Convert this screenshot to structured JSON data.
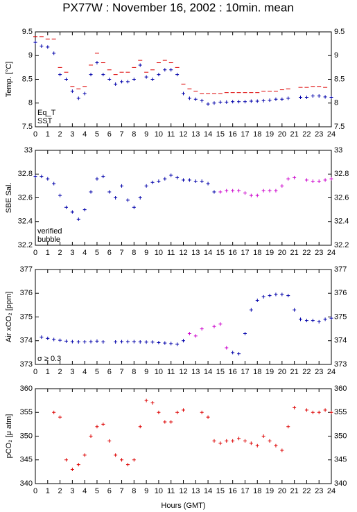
{
  "title": "PX77W : November 16, 2002 : 10min. mean",
  "chart_data": [
    {
      "type": "scatter",
      "ylabel": "Temp. [°C]",
      "x": [
        0,
        0.5,
        1,
        1.5,
        2,
        2.5,
        3,
        3.5,
        4,
        4.5,
        5,
        5.5,
        6,
        6.5,
        7,
        7.5,
        8,
        8.5,
        9,
        9.5,
        10,
        10.5,
        11,
        11.5,
        12,
        12.5,
        13,
        13.5,
        14,
        14.5,
        15,
        15.5,
        16,
        16.5,
        17,
        17.5,
        18,
        18.5,
        19,
        19.5,
        20,
        20.5,
        21,
        21.5,
        22,
        22.5,
        23,
        23.5,
        24
      ],
      "series": [
        {
          "name": "Eq_T",
          "color": "#dd0000",
          "marker": "dash",
          "values": [
            9.4,
            9.4,
            9.35,
            9.35,
            8.75,
            8.65,
            8.35,
            8.3,
            8.35,
            8.8,
            9.05,
            8.85,
            8.7,
            8.6,
            8.65,
            8.65,
            8.75,
            8.9,
            8.65,
            8.7,
            8.85,
            8.9,
            8.85,
            8.75,
            8.4,
            8.3,
            8.25,
            8.2,
            8.2,
            8.2,
            8.2,
            8.22,
            8.22,
            8.22,
            8.22,
            8.22,
            8.22,
            8.25,
            8.25,
            8.25,
            8.28,
            8.3,
            null,
            8.33,
            8.33,
            8.35,
            8.35,
            8.33,
            null
          ]
        },
        {
          "name": "SST",
          "color": "#0000aa",
          "marker": "cross",
          "values": [
            9.28,
            9.2,
            9.18,
            9.05,
            8.6,
            8.5,
            8.25,
            8.1,
            8.2,
            8.6,
            8.85,
            8.6,
            8.5,
            8.4,
            8.45,
            8.45,
            8.5,
            8.8,
            8.55,
            8.5,
            8.6,
            8.7,
            8.7,
            8.6,
            8.2,
            8.1,
            8.08,
            8.05,
            7.98,
            8,
            8.02,
            8.02,
            8.03,
            8.03,
            8.03,
            8.04,
            8.04,
            8.05,
            8.06,
            8.08,
            8.08,
            8.1,
            null,
            8.12,
            8.12,
            8.15,
            8.15,
            8.13,
            8.12
          ]
        }
      ],
      "xlim": [
        0,
        24
      ],
      "xticks": [
        0,
        1,
        2,
        3,
        4,
        5,
        6,
        7,
        8,
        9,
        10,
        11,
        12,
        13,
        14,
        15,
        16,
        17,
        18,
        19,
        20,
        21,
        22,
        23,
        24
      ],
      "ylim": [
        7.5,
        9.5
      ],
      "yticks": [
        7.5,
        8,
        8.5,
        9,
        9.5
      ]
    },
    {
      "type": "scatter",
      "ylabel": "SBE Sal.",
      "x": [
        0,
        0.5,
        1,
        1.5,
        2,
        2.5,
        3,
        3.5,
        4,
        4.5,
        5,
        5.5,
        6,
        6.5,
        7,
        7.5,
        8,
        8.5,
        9,
        9.5,
        10,
        10.5,
        11,
        11.5,
        12,
        12.5,
        13,
        13.5,
        14,
        14.5,
        15,
        15.5,
        16,
        16.5,
        17,
        17.5,
        18,
        18.5,
        19,
        19.5,
        20,
        20.5,
        21,
        21.5,
        22,
        22.5,
        23,
        23.5,
        24
      ],
      "series": [
        {
          "name": "verified",
          "color": "#0000aa",
          "marker": "cross",
          "values": [
            32.78,
            32.78,
            32.76,
            32.72,
            32.62,
            32.52,
            32.48,
            32.42,
            32.5,
            32.65,
            32.76,
            32.78,
            32.65,
            32.6,
            32.7,
            32.58,
            32.52,
            32.6,
            32.7,
            32.73,
            32.74,
            32.76,
            32.79,
            32.77,
            32.75,
            32.75,
            32.74,
            32.74,
            32.72,
            32.65,
            null,
            null,
            null,
            null,
            null,
            null,
            null,
            null,
            null,
            null,
            null,
            null,
            null,
            null,
            null,
            null,
            null,
            null,
            null
          ]
        },
        {
          "name": "bubble",
          "color": "#cc00cc",
          "marker": "cross",
          "values": [
            null,
            null,
            null,
            null,
            null,
            null,
            null,
            null,
            null,
            null,
            null,
            null,
            null,
            null,
            null,
            null,
            null,
            null,
            null,
            null,
            null,
            null,
            null,
            null,
            null,
            null,
            null,
            null,
            null,
            null,
            32.65,
            32.66,
            32.66,
            32.66,
            32.64,
            32.62,
            32.62,
            32.66,
            32.66,
            32.66,
            32.7,
            32.76,
            32.77,
            null,
            32.75,
            32.74,
            32.74,
            32.75,
            32.76
          ]
        }
      ],
      "xlim": [
        0,
        24
      ],
      "xticks": [
        0,
        1,
        2,
        3,
        4,
        5,
        6,
        7,
        8,
        9,
        10,
        11,
        12,
        13,
        14,
        15,
        16,
        17,
        18,
        19,
        20,
        21,
        22,
        23,
        24
      ],
      "ylim": [
        32.2,
        33
      ],
      "yticks": [
        32.2,
        32.4,
        32.6,
        32.8,
        33
      ]
    },
    {
      "type": "scatter",
      "ylabel": "Air xCO₂ [ppm]",
      "x": [
        0,
        0.5,
        1,
        1.5,
        2,
        2.5,
        3,
        3.5,
        4,
        4.5,
        5,
        5.5,
        6,
        6.5,
        7,
        7.5,
        8,
        8.5,
        9,
        9.5,
        10,
        10.5,
        11,
        11.5,
        12,
        12.5,
        13,
        13.5,
        14,
        14.5,
        15,
        15.5,
        16,
        16.5,
        17,
        17.5,
        18,
        18.5,
        19,
        19.5,
        20,
        20.5,
        21,
        21.5,
        22,
        22.5,
        23,
        23.5,
        24
      ],
      "series": [
        {
          "color": "#0000aa",
          "marker": "cross",
          "values": [
            null,
            374.15,
            374.1,
            374.05,
            374.02,
            373.98,
            373.96,
            373.95,
            373.95,
            373.96,
            373.98,
            373.95,
            null,
            373.95,
            373.96,
            373.96,
            373.96,
            373.95,
            373.94,
            373.94,
            373.92,
            373.9,
            373.88,
            373.85,
            374,
            null,
            null,
            null,
            null,
            null,
            null,
            null,
            373.5,
            373.45,
            374.3,
            375.3,
            375.7,
            375.85,
            375.9,
            375.95,
            375.95,
            375.9,
            375.3,
            374.9,
            374.85,
            374.85,
            374.8,
            374.9,
            374.95
          ]
        },
        {
          "name": "σ ≥ 0.3",
          "color": "#cc00cc",
          "marker": "cross",
          "values": [
            null,
            null,
            null,
            null,
            null,
            null,
            null,
            null,
            null,
            null,
            null,
            null,
            null,
            null,
            null,
            null,
            null,
            null,
            null,
            null,
            null,
            null,
            null,
            null,
            null,
            374.3,
            374.2,
            374.5,
            null,
            374.6,
            374.7,
            373.7,
            null,
            null,
            null,
            null,
            null,
            null,
            null,
            null,
            null,
            null,
            null,
            null,
            null,
            null,
            null,
            null,
            null
          ]
        }
      ],
      "xlim": [
        0,
        24
      ],
      "xticks": [
        0,
        1,
        2,
        3,
        4,
        5,
        6,
        7,
        8,
        9,
        10,
        11,
        12,
        13,
        14,
        15,
        16,
        17,
        18,
        19,
        20,
        21,
        22,
        23,
        24
      ],
      "ylim": [
        373,
        377
      ],
      "yticks": [
        373,
        374,
        375,
        376,
        377
      ]
    },
    {
      "type": "scatter",
      "ylabel": "pCO₂ [μ atm]",
      "xlabel": "Hours (GMT)",
      "x": [
        0,
        0.5,
        1,
        1.5,
        2,
        2.5,
        3,
        3.5,
        4,
        4.5,
        5,
        5.5,
        6,
        6.5,
        7,
        7.5,
        8,
        8.5,
        9,
        9.5,
        10,
        10.5,
        11,
        11.5,
        12,
        12.5,
        13,
        13.5,
        14,
        14.5,
        15,
        15.5,
        16,
        16.5,
        17,
        17.5,
        18,
        18.5,
        19,
        19.5,
        20,
        20.5,
        21,
        21.5,
        22,
        22.5,
        23,
        23.5,
        24
      ],
      "series": [
        {
          "color": "#dd0000",
          "marker": "cross",
          "values": [
            null,
            null,
            null,
            355,
            354,
            345,
            343,
            344,
            346,
            350,
            352,
            352.5,
            349,
            346,
            345,
            344,
            345,
            352,
            357.5,
            357,
            355,
            353,
            353,
            355,
            355.5,
            null,
            null,
            355,
            354,
            349,
            348.5,
            349,
            349,
            349.5,
            349,
            348.5,
            348,
            350,
            349,
            348,
            347,
            352,
            356,
            null,
            355.5,
            355,
            355,
            355.5,
            355
          ]
        }
      ],
      "xlim": [
        0,
        24
      ],
      "xticks": [
        0,
        1,
        2,
        3,
        4,
        5,
        6,
        7,
        8,
        9,
        10,
        11,
        12,
        13,
        14,
        15,
        16,
        17,
        18,
        19,
        20,
        21,
        22,
        23,
        24
      ],
      "ylim": [
        340,
        360
      ],
      "yticks": [
        340,
        345,
        350,
        355,
        360
      ]
    }
  ]
}
